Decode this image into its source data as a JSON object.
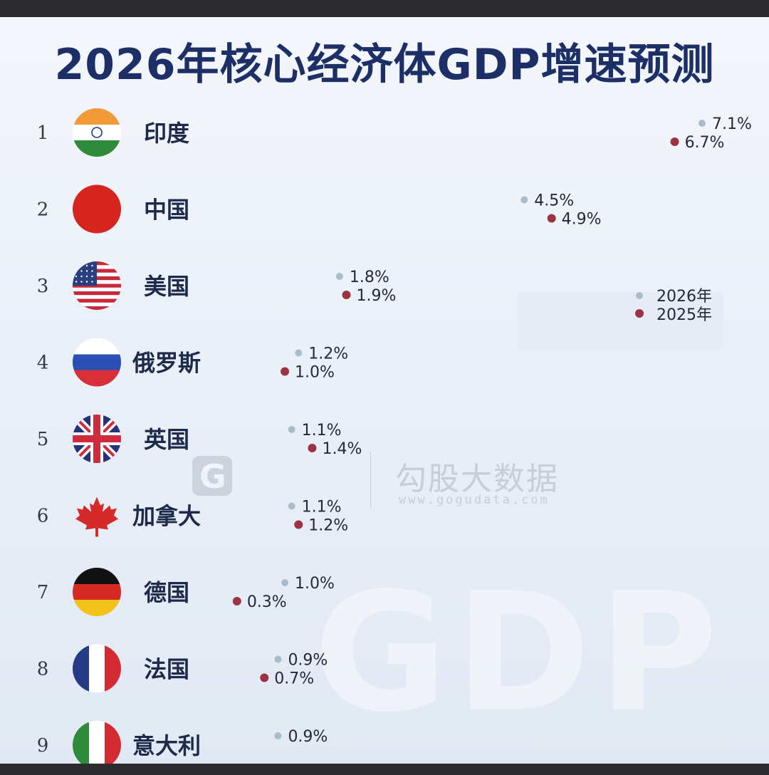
{
  "title": "2026年核心经济体GDP增速预测",
  "watermark": {
    "brand": "勾股大数据",
    "url": "www.gogudata.com",
    "logo_text": "G"
  },
  "background_text": "GDP",
  "colors": {
    "series_2026": "#a9bccb",
    "series_2025": "#9b3342",
    "title": "#1d2f67"
  },
  "chart_data": {
    "type": "bar",
    "title": "2026年核心经济体GDP增速预测",
    "unit": "%",
    "legend_position": "right-middle",
    "xlim": [
      0,
      7.1
    ],
    "categories": [
      "印度",
      "中国",
      "美国",
      "俄罗斯",
      "英国",
      "加拿大",
      "德国",
      "法国",
      "意大利"
    ],
    "ranks": [
      "1",
      "2",
      "3",
      "4",
      "5",
      "6",
      "7",
      "8",
      "9"
    ],
    "flags": [
      "india-flag",
      "china-flag",
      "usa-flag",
      "russia-flag",
      "uk-flag",
      "canada-flag",
      "germany-flag",
      "france-flag",
      "italy-flag"
    ],
    "series": [
      {
        "name": "2026年",
        "values": [
          7.1,
          4.5,
          1.8,
          1.2,
          1.1,
          1.1,
          1.0,
          0.9,
          0.9
        ],
        "labels": [
          "7.1%",
          "4.5%",
          "1.8%",
          "1.2%",
          "1.1%",
          "1.1%",
          "1.0%",
          "0.9%",
          "0.9%"
        ]
      },
      {
        "name": "2025年",
        "values": [
          6.7,
          4.9,
          1.9,
          1.0,
          1.4,
          1.2,
          0.3,
          0.7,
          null
        ],
        "labels": [
          "6.7%",
          "4.9%",
          "1.9%",
          "1.0%",
          "1.4%",
          "1.2%",
          "0.3%",
          "0.7%",
          ""
        ]
      }
    ]
  }
}
